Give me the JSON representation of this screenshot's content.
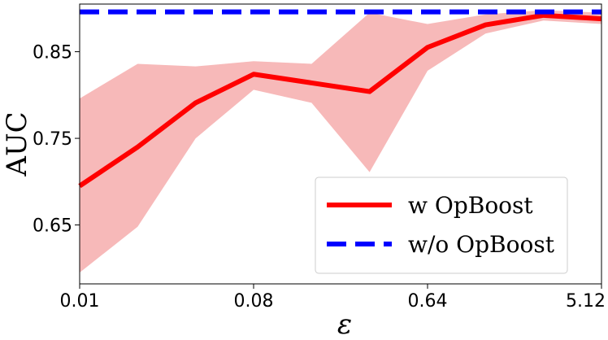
{
  "chart_data": {
    "type": "line",
    "x_scale": "log2",
    "x": [
      0.01,
      0.02,
      0.04,
      0.08,
      0.16,
      0.32,
      0.64,
      1.28,
      2.56,
      5.12
    ],
    "xticks": [
      0.01,
      0.08,
      0.64,
      5.12
    ],
    "xtick_labels": [
      "0.01",
      "0.08",
      "0.64",
      "5.12"
    ],
    "yticks": [
      0.65,
      0.75,
      0.85
    ],
    "ytick_labels": [
      "0.65",
      "0.75",
      "0.85"
    ],
    "ylim": [
      0.582,
      0.905
    ],
    "xlabel": "ε",
    "ylabel": "AUC",
    "series": [
      {
        "name": "w OpBoost",
        "color": "#ff0000",
        "style": "solid",
        "values": [
          0.695,
          0.74,
          0.791,
          0.824,
          0.814,
          0.804,
          0.855,
          0.881,
          0.892,
          0.888
        ],
        "band_lower": [
          0.595,
          0.648,
          0.75,
          0.806,
          0.791,
          0.711,
          0.828,
          0.871,
          0.886,
          0.882
        ],
        "band_upper": [
          0.796,
          0.836,
          0.833,
          0.839,
          0.836,
          0.895,
          0.882,
          0.893,
          0.898,
          0.895
        ],
        "band_color": "#f7b9b9"
      },
      {
        "name": "w/o OpBoost",
        "color": "#0000ff",
        "style": "dashed",
        "values": [
          0.896,
          0.896,
          0.896,
          0.896,
          0.896,
          0.896,
          0.896,
          0.896,
          0.896,
          0.896
        ]
      }
    ],
    "legend_position": "lower-right",
    "grid": false
  }
}
